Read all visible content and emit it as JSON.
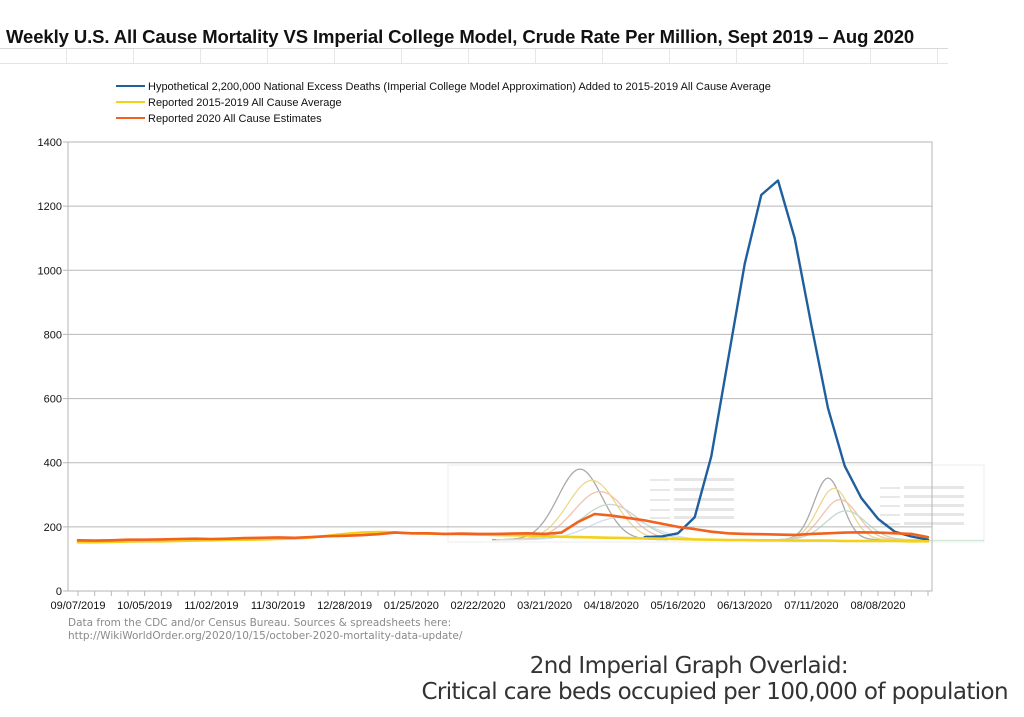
{
  "page": {
    "title": "Weekly U.S. All Cause Mortality VS Imperial College Model, Crude Rate Per Million, Sept 2019 – Aug 2020",
    "source_line1": "Data from the CDC and/or Census Bureau. Sources & spreadsheets here:",
    "source_line2": "http://WikiWorldOrder.org/2020/10/15/october-2020-mortality-data-update/",
    "overlay_caption_line1": "2nd Imperial Graph Overlaid:",
    "overlay_caption_line2": "Critical care beds occupied per 100,000 of population"
  },
  "chart_data": {
    "type": "line",
    "title": "Weekly U.S. All Cause Mortality VS Imperial College Model, Crude Rate Per Million, Sept 2019 – Aug 2020",
    "xlabel": "",
    "ylabel": "",
    "ylim": [
      0,
      1400
    ],
    "yticks": [
      0,
      200,
      400,
      600,
      800,
      1000,
      1200,
      1400
    ],
    "grid": "horizontal",
    "legend_position": "top",
    "x_tick_labels": [
      "09/07/2019",
      "10/05/2019",
      "11/02/2019",
      "11/30/2019",
      "12/28/2019",
      "01/25/2020",
      "02/22/2020",
      "03/21/2020",
      "04/18/2020",
      "05/16/2020",
      "06/13/2020",
      "07/11/2020",
      "08/08/2020"
    ],
    "x": [
      "09/07/2019",
      "09/14/2019",
      "09/21/2019",
      "09/28/2019",
      "10/05/2019",
      "10/12/2019",
      "10/19/2019",
      "10/26/2019",
      "11/02/2019",
      "11/09/2019",
      "11/16/2019",
      "11/23/2019",
      "11/30/2019",
      "12/07/2019",
      "12/14/2019",
      "12/21/2019",
      "12/28/2019",
      "01/04/2020",
      "01/11/2020",
      "01/18/2020",
      "01/25/2020",
      "02/01/2020",
      "02/08/2020",
      "02/15/2020",
      "02/22/2020",
      "02/29/2020",
      "03/07/2020",
      "03/14/2020",
      "03/21/2020",
      "03/28/2020",
      "04/04/2020",
      "04/11/2020",
      "04/18/2020",
      "04/25/2020",
      "05/02/2020",
      "05/09/2020",
      "05/16/2020",
      "05/23/2020",
      "05/30/2020",
      "06/06/2020",
      "06/13/2020",
      "06/20/2020",
      "06/27/2020",
      "07/04/2020",
      "07/11/2020",
      "07/18/2020",
      "07/25/2020",
      "08/01/2020",
      "08/08/2020",
      "08/15/2020",
      "08/22/2020",
      "08/29/2020"
    ],
    "series": [
      {
        "name": "Hypothetical 2,200,000 National Excess Deaths (Imperial College Model Approximation) Added to 2015-2019 All Cause Average",
        "color": "#1f5f9e",
        "values": [
          null,
          null,
          null,
          null,
          null,
          null,
          null,
          null,
          null,
          null,
          null,
          null,
          null,
          null,
          null,
          null,
          null,
          null,
          null,
          null,
          null,
          null,
          null,
          null,
          null,
          null,
          null,
          null,
          null,
          null,
          null,
          null,
          null,
          null,
          168,
          170,
          180,
          230,
          420,
          720,
          1020,
          1235,
          1280,
          1100,
          830,
          570,
          390,
          290,
          225,
          185,
          170,
          160
        ]
      },
      {
        "name": "Reported 2015-2019 All Cause Average",
        "color": "#f2d11b",
        "values": [
          152,
          152,
          153,
          154,
          155,
          155,
          156,
          157,
          158,
          159,
          160,
          161,
          162,
          164,
          167,
          172,
          178,
          182,
          184,
          183,
          180,
          179,
          178,
          177,
          176,
          175,
          174,
          173,
          171,
          169,
          168,
          167,
          166,
          165,
          164,
          163,
          162,
          161,
          160,
          159,
          159,
          158,
          158,
          157,
          157,
          157,
          156,
          156,
          156,
          156,
          155,
          155
        ]
      },
      {
        "name": "Reported 2020 All Cause Estimates",
        "color": "#f0621e",
        "values": [
          158,
          157,
          158,
          160,
          160,
          161,
          162,
          163,
          162,
          163,
          165,
          166,
          167,
          166,
          168,
          171,
          172,
          174,
          177,
          182,
          180,
          180,
          178,
          179,
          178,
          178,
          179,
          180,
          178,
          182,
          215,
          240,
          235,
          228,
          220,
          210,
          200,
          193,
          185,
          180,
          178,
          177,
          176,
          175,
          178,
          180,
          182,
          183,
          182,
          180,
          178,
          168
        ]
      }
    ]
  }
}
